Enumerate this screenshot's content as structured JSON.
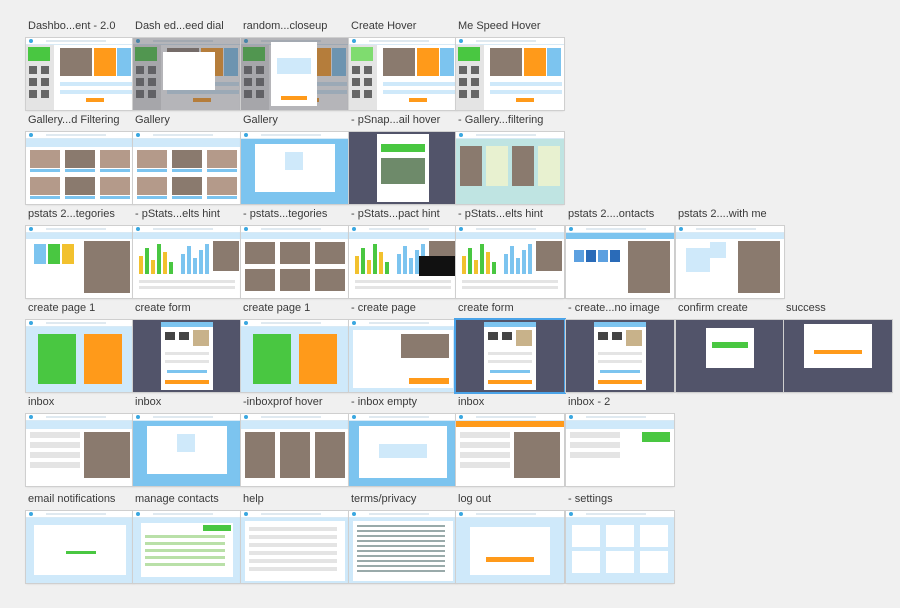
{
  "colors": {
    "blue": "#7cc4ef",
    "lightblue": "#cfe9fa",
    "green": "#49c741",
    "orange": "#ff9a1a",
    "photo": "#8a7a6e",
    "dark": "#52546a",
    "yellow": "#f2c12e",
    "white": "#ffffff",
    "grey": "#e4e4e4"
  },
  "artboards": [
    {
      "label": "Dashbo...ent - 2.0",
      "variant": "dash"
    },
    {
      "label": "Dash ed...eed dial",
      "variant": "dash-dim"
    },
    {
      "label": "random...closeup",
      "variant": "dash-modal"
    },
    {
      "label": "Create Hover",
      "variant": "dash-light"
    },
    {
      "label": "Me Speed Hover",
      "variant": "dash"
    },
    {
      "label": "Gallery...d Filtering",
      "variant": "gallery"
    },
    {
      "label": "Gallery",
      "variant": "gallery"
    },
    {
      "label": "Gallery",
      "variant": "gallery-empty"
    },
    {
      "label": "- pSnap...ail hover",
      "variant": "snap-hover"
    },
    {
      "label": "- Gallery...filtering",
      "variant": "gallery-filter"
    },
    {
      "label": "pstats 2...tegories",
      "variant": "stats-cat"
    },
    {
      "label": "- pStats...elts hint",
      "variant": "stats-chart"
    },
    {
      "label": "- pstats...tegories",
      "variant": "stats-cards"
    },
    {
      "label": "- pStats...pact hint",
      "variant": "stats-impact"
    },
    {
      "label": "- pStats...elts hint",
      "variant": "stats-chart"
    },
    {
      "label": "pstats 2....ontacts",
      "variant": "stats-contacts"
    },
    {
      "label": "pstats 2....with me",
      "variant": "stats-withme"
    },
    {
      "label": "create page 1",
      "variant": "create"
    },
    {
      "label": "create form",
      "variant": "create-form-dim"
    },
    {
      "label": "create page 1",
      "variant": "create"
    },
    {
      "label": "- create page",
      "variant": "create-page"
    },
    {
      "label": "create form",
      "variant": "create-form-dim"
    },
    {
      "label": "- create...no image",
      "variant": "create-form-dim"
    },
    {
      "label": "confirm create",
      "variant": "confirm"
    },
    {
      "label": "success",
      "variant": "success"
    },
    {
      "label": "inbox",
      "variant": "inbox"
    },
    {
      "label": "inbox",
      "variant": "inbox-empty"
    },
    {
      "label": "-inboxprof hover",
      "variant": "inbox-prof"
    },
    {
      "label": "- inbox empty",
      "variant": "inbox-empty2"
    },
    {
      "label": "inbox",
      "variant": "inbox2"
    },
    {
      "label": "inbox - 2",
      "variant": "inbox3"
    },
    {
      "label": "email notifications",
      "variant": "email"
    },
    {
      "label": "manage contacts",
      "variant": "contacts"
    },
    {
      "label": "help",
      "variant": "help"
    },
    {
      "label": "terms/privacy",
      "variant": "terms"
    },
    {
      "label": "log out",
      "variant": "logout"
    },
    {
      "label": "- settings",
      "variant": "settings"
    }
  ]
}
